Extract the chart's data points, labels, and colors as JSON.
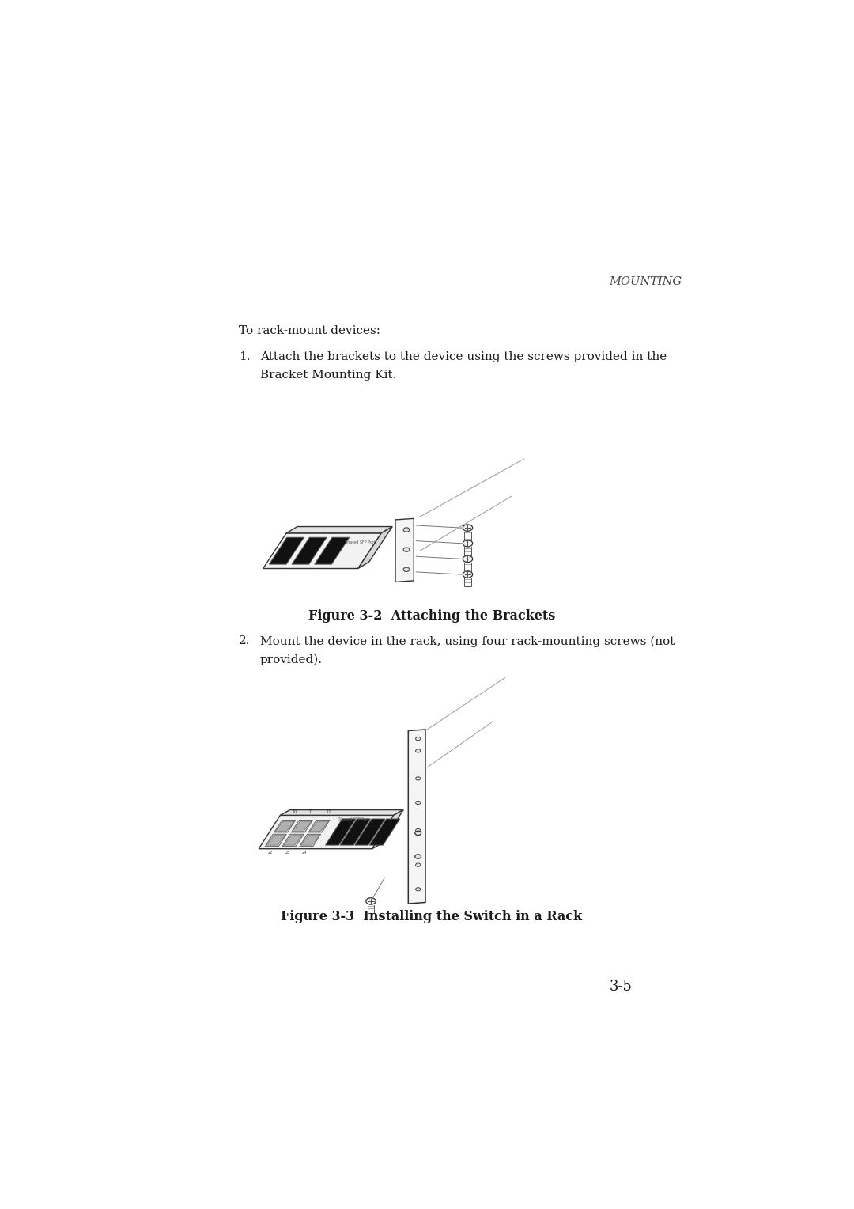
{
  "bg_color": "#ffffff",
  "text_color": "#1a1a1a",
  "header_right": "MOUNTING",
  "intro_text": "To rack-mount devices:",
  "step1_line1": "Attach the brackets to the device using the screws provided in the",
  "step1_line2": "Bracket Mounting Kit.",
  "fig1_caption": "Figure 3-2  Attaching the Brackets",
  "step2_line1": "Mount the device in the rack, using four rack-mounting screws (not",
  "step2_line2": "provided).",
  "fig2_caption": "Figure 3-3  Installing the Switch in a Rack",
  "page_num": "3-5",
  "figsize": [
    10.8,
    15.28
  ]
}
